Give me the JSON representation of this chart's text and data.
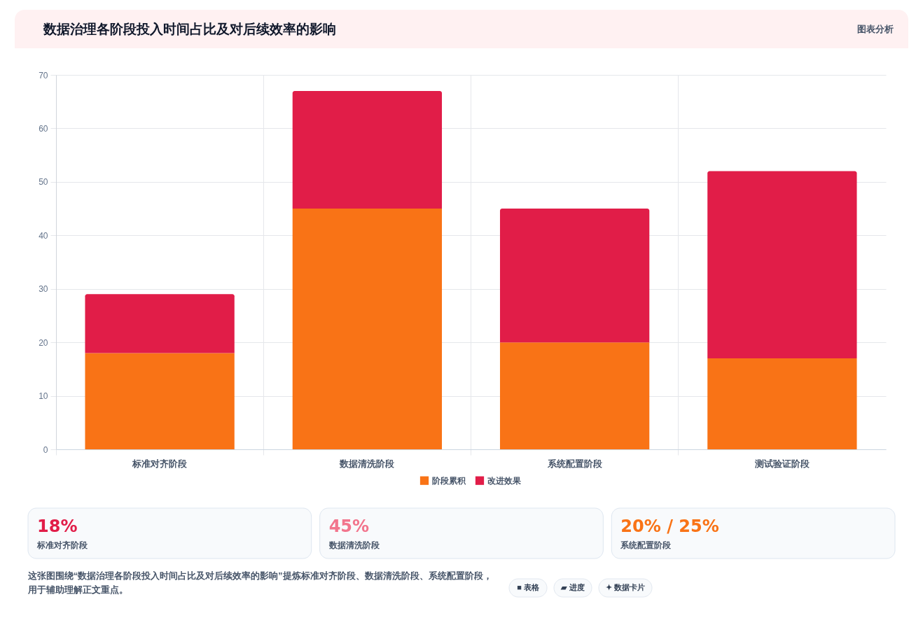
{
  "chart_data": [
    {
      "type": "bar",
      "title": "数据治理各阶段投入时间占比及对后续效率的影响",
      "categories": [
        "标准对齐阶段",
        "数据清洗阶段",
        "系统配置阶段",
        "测试验证阶段"
      ],
      "series": [
        {
          "name": "阶段累积",
          "color": "#f97316",
          "values": [
            18,
            45,
            20,
            17
          ]
        },
        {
          "name": "改进效果",
          "color": "#e11d48",
          "values": [
            11,
            22,
            25,
            35
          ]
        }
      ],
      "stacked": true,
      "ylim": [
        0,
        70
      ],
      "yticks": [
        0,
        10,
        20,
        30,
        40,
        50,
        60,
        70
      ],
      "grid": true,
      "legend": "bottom",
      "annotations": [
        "图表分析",
        "这张图围绕“数据治理各阶段投入时间占比及对后续效率的影响”提炼标准对齐阶段、数据清洗阶段、系统配置阶段，用于辅助理解正文重点。",
        "■ 表格",
        "▰ 进度",
        "✦ 数据卡片"
      ]
    },
    {
      "type": "other",
      "annotations": [
        "18%",
        "标准对齐阶段"
      ]
    },
    {
      "type": "other",
      "annotations": [
        "45%",
        "数据清洗阶段"
      ]
    },
    {
      "type": "other",
      "annotations": [
        "20% / 25%",
        "系统配置阶段"
      ]
    }
  ]
}
